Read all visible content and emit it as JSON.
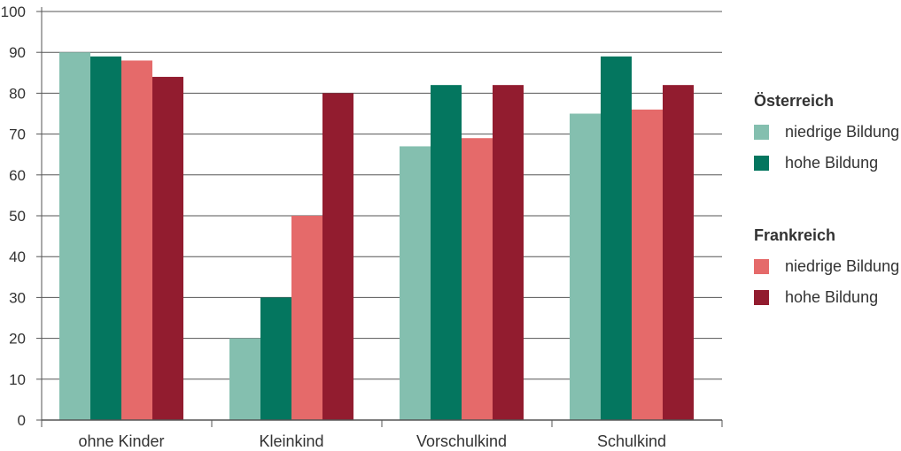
{
  "chart_data": {
    "type": "bar",
    "title": "",
    "xlabel": "",
    "ylabel": "",
    "ylim": [
      0,
      100
    ],
    "yticks": [
      0,
      10,
      20,
      30,
      40,
      50,
      60,
      70,
      80,
      90,
      100
    ],
    "grid": true,
    "legend_position": "right",
    "categories": [
      "ohne Kinder",
      "Kleinkind",
      "Vorschulkind",
      "Schulkind"
    ],
    "series": [
      {
        "name": "niedrige Bildung",
        "group": "Österreich",
        "color": "#84bfaf",
        "values": [
          90,
          20,
          67,
          75
        ]
      },
      {
        "name": "hohe Bildung",
        "group": "Österreich",
        "color": "#04765f",
        "values": [
          89,
          30,
          82,
          89
        ]
      },
      {
        "name": "niedrige Bildung",
        "group": "Frankreich",
        "color": "#e56a6a",
        "values": [
          88,
          50,
          69,
          76
        ]
      },
      {
        "name": "hohe Bildung",
        "group": "Frankreich",
        "color": "#921c2f",
        "values": [
          84,
          80,
          82,
          82
        ]
      }
    ],
    "legend": {
      "groups": [
        {
          "title": "Österreich",
          "items": [
            {
              "label": "niedrige Bildung",
              "color": "#84bfaf"
            },
            {
              "label": "hohe Bildung",
              "color": "#04765f"
            }
          ]
        },
        {
          "title": "Frankreich",
          "items": [
            {
              "label": "niedrige Bildung",
              "color": "#e56a6a"
            },
            {
              "label": "hohe Bildung",
              "color": "#921c2f"
            }
          ]
        }
      ]
    }
  }
}
